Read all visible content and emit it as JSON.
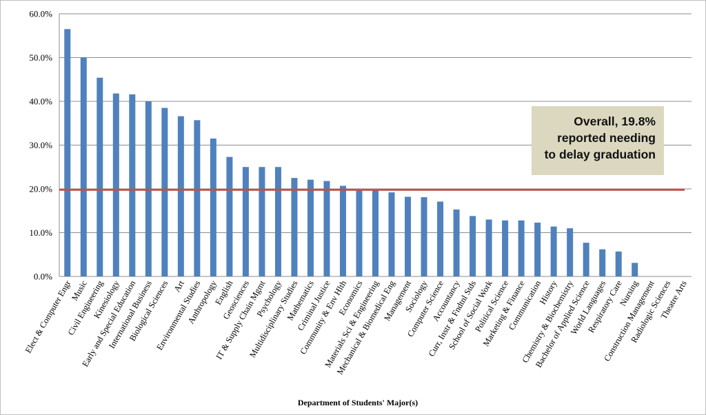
{
  "chart_data": {
    "type": "bar",
    "xlabel": "Department of Students' Major(s)",
    "ylabel": "",
    "ylim": [
      0,
      60
    ],
    "yticks": [
      "0.0%",
      "10.0%",
      "20.0%",
      "30.0%",
      "40.0%",
      "50.0%",
      "60.0%"
    ],
    "grid": true,
    "bar_color": "#4f81bd",
    "reference_line": {
      "value": 19.8,
      "color": "#c0504d"
    },
    "annotation": [
      "Overall, 19.8%",
      "reported needing",
      "to delay graduation"
    ],
    "categories": [
      "Elect & Computer Engr",
      "Music",
      "Civil Engineering",
      "Kinesiology",
      "Early and Special Education",
      "International Business",
      "Biological Sciences",
      "Art",
      "Environmental Studies",
      "Anthropology",
      "English",
      "Geosciences",
      "IT & Supply Chain Mgmt",
      "Psychology",
      "Multidisciplinary Studies",
      "Mathematics",
      "Criminal Justice",
      "Community & Env Hlth",
      "Economics",
      "Materials Sci & Engineering",
      "Mechanical & Biomedical Eng",
      "Management",
      "Sociology",
      "Computer Science",
      "Accountancy",
      "Curr, Instr & Fndtnl Stds",
      "School of Social Work",
      "Political Science",
      "Marketing & Finance",
      "Communication",
      "History",
      "Chemistry & Biochemistry",
      "Bachelor of Applied Science",
      "World Languages",
      "Respiratory Care",
      "Nursing",
      "Construction Management",
      "Radiologic Sciences",
      "Theatre Arts"
    ],
    "values": [
      56.5,
      50.0,
      45.4,
      41.8,
      41.6,
      40.0,
      38.5,
      36.6,
      35.7,
      31.5,
      27.3,
      25.0,
      25.0,
      25.0,
      22.5,
      22.1,
      21.8,
      20.7,
      19.6,
      19.6,
      19.2,
      18.2,
      18.1,
      17.1,
      15.3,
      13.8,
      13.0,
      12.8,
      12.8,
      12.3,
      11.4,
      11.0,
      7.7,
      6.2,
      5.7,
      3.1,
      0,
      0,
      0
    ]
  }
}
